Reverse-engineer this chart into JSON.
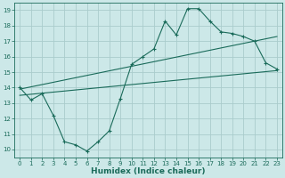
{
  "title": "",
  "xlabel": "Humidex (Indice chaleur)",
  "ylabel": "",
  "bg_color": "#cce8e8",
  "grid_color": "#aacccc",
  "line_color": "#1a6b5a",
  "xlim": [
    -0.5,
    23.5
  ],
  "ylim": [
    9.5,
    19.5
  ],
  "xticks": [
    0,
    1,
    2,
    3,
    4,
    5,
    6,
    7,
    8,
    9,
    10,
    11,
    12,
    13,
    14,
    15,
    16,
    17,
    18,
    19,
    20,
    21,
    22,
    23
  ],
  "yticks": [
    10,
    11,
    12,
    13,
    14,
    15,
    16,
    17,
    18,
    19
  ],
  "line1_x": [
    0,
    1,
    2,
    3,
    4,
    5,
    6,
    7,
    8,
    9,
    10,
    11,
    12,
    13,
    14,
    15,
    16,
    17,
    18,
    19,
    20,
    21,
    22,
    23
  ],
  "line1_y": [
    14.0,
    13.2,
    13.6,
    12.2,
    10.5,
    10.3,
    9.9,
    10.5,
    11.2,
    13.3,
    15.5,
    16.0,
    16.5,
    18.3,
    17.4,
    19.1,
    19.1,
    18.3,
    17.6,
    17.5,
    17.3,
    17.0,
    15.6,
    15.2
  ],
  "line2_x": [
    0,
    23
  ],
  "line2_y": [
    13.5,
    15.1
  ],
  "line3_x": [
    0,
    23
  ],
  "line3_y": [
    13.9,
    17.3
  ],
  "xlabel_fontsize": 6.5,
  "tick_fontsize": 5.0
}
